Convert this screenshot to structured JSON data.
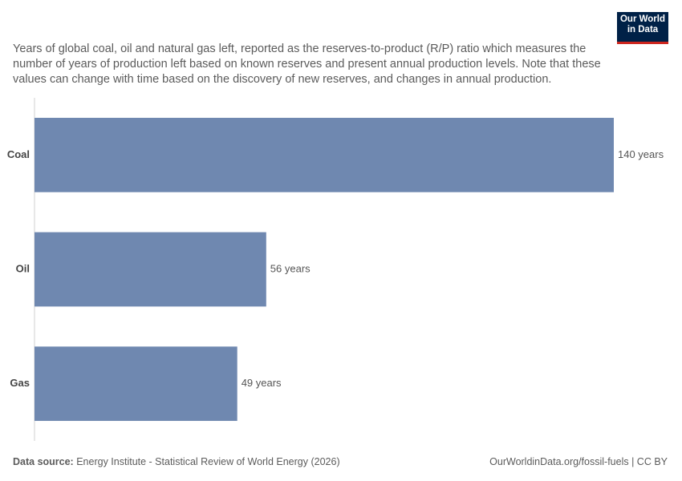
{
  "chart_data": {
    "type": "bar",
    "orientation": "horizontal",
    "subtitle": "Years of global coal, oil and natural gas left, reported as the reserves-to-product (R/P) ratio which measures the number of years of production left based on known reserves and present annual production levels. Note that these values can change with time based on the discovery of new reserves, and changes in annual production.",
    "categories": [
      "Coal",
      "Oil",
      "Gas"
    ],
    "values": [
      140,
      56,
      49
    ],
    "value_labels": [
      "140 years",
      "56 years",
      "49 years"
    ],
    "color": "#6f88b0",
    "logo": "Our World in Data",
    "source_label": "Data source:",
    "source": "Energy Institute - Statistical Review of World Energy (2026)",
    "url": "OurWorldinData.org/fossil-fuels | CC BY"
  }
}
